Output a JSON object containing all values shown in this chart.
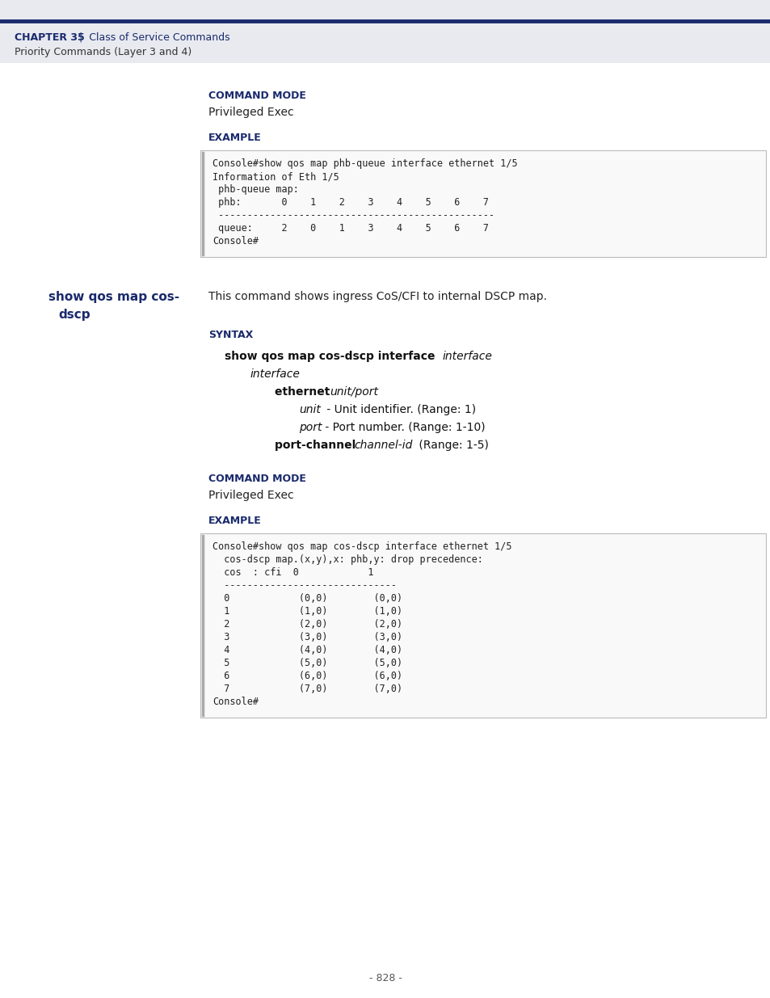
{
  "page_bg": "#ffffff",
  "header_bg": "#e8eaf0",
  "header_line_color": "#1a2a6c",
  "header_dark_blue": "#1a2a6c",
  "body_text_color": "#222222",
  "label_blue": "#1a2a6c",
  "code_bg": "#f9f9f9",
  "code_border": "#bbbbbb",
  "header_chapter": "CHAPTER 35",
  "header_title": " |  Class of Service Commands",
  "header_sub": "Priority Commands (Layer 3 and 4)",
  "section1": {
    "code_lines": [
      "Console#show qos map phb-queue interface ethernet 1/5",
      "Information of Eth 1/5",
      " phb-queue map:",
      " phb:       0    1    2    3    4    5    6    7",
      " ------------------------------------------------",
      " queue:     2    0    1    3    4    5    6    7",
      "Console#"
    ]
  },
  "section2": {
    "cmd_left1": "show qos map cos-",
    "cmd_left2": "dscp",
    "description": "This command shows ingress CoS/CFI to internal DSCP map.",
    "code_lines": [
      "Console#show qos map cos-dscp interface ethernet 1/5",
      "  cos-dscp map.(x,y),x: phb,y: drop precedence:",
      "  cos  : cfi  0            1",
      "  ------------------------------",
      "  0            (0,0)        (0,0)",
      "  1            (1,0)        (1,0)",
      "  2            (2,0)        (2,0)",
      "  3            (3,0)        (3,0)",
      "  4            (4,0)        (4,0)",
      "  5            (5,0)        (5,0)",
      "  6            (6,0)        (6,0)",
      "  7            (7,0)        (7,0)",
      "Console#"
    ]
  },
  "page_number": "- 828 -"
}
